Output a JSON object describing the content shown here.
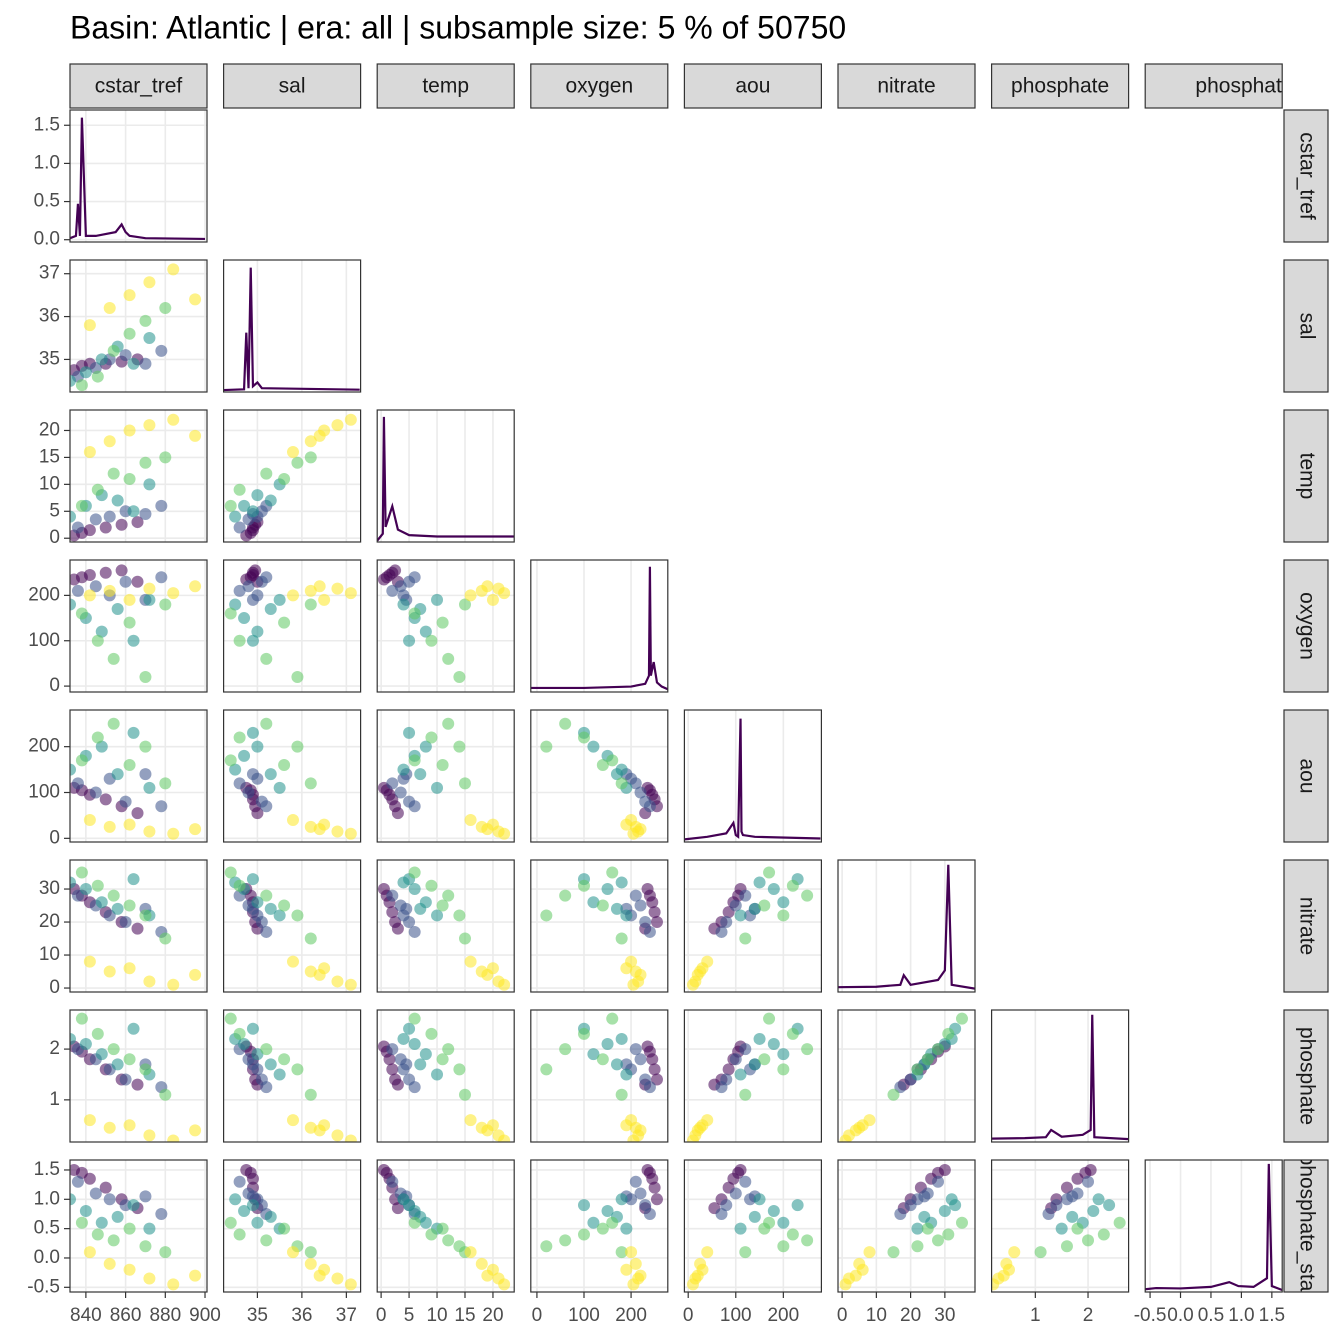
{
  "chart_data": {
    "type": "pairs",
    "title": "Basin: Atlantic | era: all | subsample size: 5 % of 50750",
    "group_colors": [
      "#440154",
      "#3b528b",
      "#21918c",
      "#5ec962",
      "#fde725"
    ],
    "point_groups": [
      0,
      0,
      0,
      0,
      0,
      0,
      1,
      1,
      1,
      1,
      1,
      1,
      2,
      2,
      2,
      2,
      2,
      2,
      3,
      3,
      3,
      3,
      3,
      3,
      4,
      4,
      4,
      4,
      4,
      4
    ],
    "density_color": "#440154",
    "density_yticks": [
      {
        "value": 0,
        "label": "0.0"
      },
      0.5,
      {
        "value": 1,
        "label": "1.0"
      },
      1.5
    ],
    "variables": [
      {
        "name": "cstar_tref",
        "lim": [
          832,
          901
        ],
        "ticks": [
          840,
          860,
          880,
          900
        ],
        "values": [
          834,
          838,
          842,
          850,
          858,
          866,
          836,
          845,
          852,
          860,
          870,
          878,
          832,
          840,
          848,
          856,
          864,
          872,
          838,
          846,
          854,
          862,
          870,
          880,
          842,
          852,
          862,
          872,
          884,
          895
        ],
        "density": {
          "x": [
            832,
            835,
            836,
            837,
            838,
            840,
            845,
            855,
            858,
            860,
            862,
            870,
            900
          ],
          "y": [
            0.02,
            0.05,
            0.47,
            0.05,
            1.6,
            0.05,
            0.05,
            0.1,
            0.2,
            0.1,
            0.05,
            0.02,
            0.01
          ],
          "ylim": [
            -0.03,
            1.7
          ]
        }
      },
      {
        "name": "sal",
        "lim": [
          34.24,
          37.32
        ],
        "ticks": [
          35,
          36,
          37
        ],
        "values": [
          34.75,
          34.85,
          34.9,
          34.9,
          34.95,
          35.0,
          34.6,
          34.8,
          35.0,
          35.1,
          34.9,
          35.2,
          34.5,
          34.7,
          35.0,
          35.3,
          34.9,
          35.5,
          34.4,
          34.6,
          35.2,
          35.6,
          35.9,
          36.2,
          35.8,
          36.2,
          36.5,
          36.8,
          37.1,
          36.4
        ],
        "density": {
          "x": [
            34.24,
            34.7,
            34.75,
            34.8,
            34.85,
            34.9,
            35.0,
            35.1,
            37.3
          ],
          "y": [
            0,
            0.02,
            1.5,
            0.05,
            3.2,
            0.1,
            0.2,
            0.05,
            0.01
          ],
          "ylim": [
            -0.05,
            3.4
          ]
        }
      },
      {
        "name": "temp",
        "lim": [
          -0.7,
          23.8
        ],
        "ticks": [
          0,
          5,
          10,
          15,
          20
        ],
        "values": [
          0.5,
          1.0,
          1.5,
          2.0,
          2.5,
          3.0,
          2,
          3.5,
          4,
          5,
          4.5,
          6,
          4,
          6,
          8,
          7,
          5,
          10,
          6,
          9,
          12,
          11,
          14,
          15,
          16,
          18,
          20,
          21,
          22,
          19
        ],
        "density": {
          "x": [
            -0.7,
            0.3,
            0.5,
            0.8,
            2,
            3,
            5,
            10,
            23.8
          ],
          "y": [
            0,
            0.05,
            0.9,
            0.1,
            0.25,
            0.08,
            0.04,
            0.03,
            0.03
          ],
          "ylim": [
            -0.01,
            0.95
          ]
        }
      },
      {
        "name": "oxygen",
        "lim": [
          -13,
          278
        ],
        "ticks": [
          0,
          100,
          200
        ],
        "values": [
          235,
          240,
          245,
          250,
          255,
          230,
          210,
          220,
          200,
          230,
          190,
          240,
          180,
          150,
          120,
          170,
          100,
          190,
          160,
          100,
          60,
          140,
          20,
          180,
          200,
          210,
          190,
          215,
          205,
          220
        ],
        "density": {
          "x": [
            -13,
            100,
            200,
            230,
            238,
            240,
            242,
            248,
            255,
            265,
            278
          ],
          "y": [
            0.001,
            0.001,
            0.002,
            0.004,
            0.01,
            0.09,
            0.01,
            0.02,
            0.005,
            0.002,
            0
          ],
          "ylim": [
            -0.002,
            0.095
          ]
        }
      },
      {
        "name": "aou",
        "lim": [
          -8,
          280
        ],
        "ticks": [
          0,
          100,
          200
        ],
        "values": [
          110,
          105,
          95,
          85,
          70,
          55,
          120,
          100,
          130,
          80,
          140,
          70,
          150,
          180,
          200,
          140,
          230,
          110,
          170,
          220,
          250,
          160,
          200,
          120,
          40,
          25,
          30,
          15,
          10,
          20
        ],
        "density": {
          "x": [
            -8,
            40,
            80,
            95,
            100,
            105,
            110,
            112,
            115,
            140,
            278
          ],
          "y": [
            0.0005,
            0.002,
            0.004,
            0.01,
            0.003,
            0.002,
            0.07,
            0.005,
            0.003,
            0.002,
            0.001
          ],
          "ylim": [
            -0.001,
            0.075
          ]
        }
      },
      {
        "name": "nitrate",
        "lim": [
          -1.2,
          38.8
        ],
        "ticks": [
          0,
          10,
          20,
          30
        ],
        "values": [
          30,
          28,
          26,
          23,
          20,
          18,
          28,
          25,
          22,
          20,
          24,
          17,
          32,
          30,
          26,
          24,
          33,
          22,
          35,
          31,
          28,
          25,
          22,
          15,
          8,
          5,
          6,
          2,
          1,
          4
        ],
        "density": {
          "x": [
            -1.2,
            10,
            17,
            18,
            20,
            28,
            30,
            31,
            32,
            38.8
          ],
          "y": [
            0.005,
            0.006,
            0.01,
            0.03,
            0.01,
            0.02,
            0.04,
            0.26,
            0.01,
            0.002
          ],
          "ylim": [
            -0.005,
            0.27
          ]
        }
      },
      {
        "name": "phosphate",
        "lim": [
          0.17,
          2.77
        ],
        "ticks": [
          1,
          2
        ],
        "values": [
          2.05,
          1.95,
          1.8,
          1.6,
          1.4,
          1.3,
          2.0,
          1.8,
          1.6,
          1.4,
          1.7,
          1.25,
          2.2,
          2.1,
          1.9,
          1.7,
          2.4,
          1.5,
          2.6,
          2.3,
          2.0,
          1.8,
          1.6,
          1.1,
          0.6,
          0.45,
          0.5,
          0.3,
          0.2,
          0.4
        ],
        "density": {
          "x": [
            0.17,
            0.8,
            1.2,
            1.3,
            1.5,
            1.9,
            2.05,
            2.08,
            2.12,
            2.77
          ],
          "y": [
            0.02,
            0.03,
            0.05,
            0.2,
            0.06,
            0.1,
            0.2,
            2.6,
            0.05,
            0.01
          ],
          "ylim": [
            -0.05,
            2.7
          ]
        }
      },
      {
        "name": "phosphate_star",
        "lim": [
          -0.58,
          1.67
        ],
        "ticks": [
          -0.5,
          {
            "value": 0,
            "label": "0.0"
          },
          0.5,
          {
            "value": 1,
            "label": "1.0"
          },
          1.5
        ],
        "values": [
          1.5,
          1.45,
          1.35,
          1.2,
          1.0,
          0.85,
          1.3,
          1.1,
          1.0,
          0.9,
          1.05,
          0.75,
          1.0,
          0.8,
          0.6,
          0.7,
          0.9,
          0.5,
          0.6,
          0.4,
          0.3,
          0.5,
          0.2,
          0.1,
          0.1,
          -0.1,
          -0.2,
          -0.35,
          -0.45,
          -0.3
        ],
        "density": {
          "x": [
            -0.58,
            -0.4,
            0,
            0.5,
            0.8,
            0.95,
            1.2,
            1.42,
            1.45,
            1.5,
            1.67
          ],
          "y": [
            0.02,
            0.05,
            0.04,
            0.08,
            0.2,
            0.1,
            0.08,
            0.3,
            3.2,
            0.1,
            0
          ],
          "ylim": [
            -0.05,
            3.3
          ]
        }
      }
    ]
  }
}
